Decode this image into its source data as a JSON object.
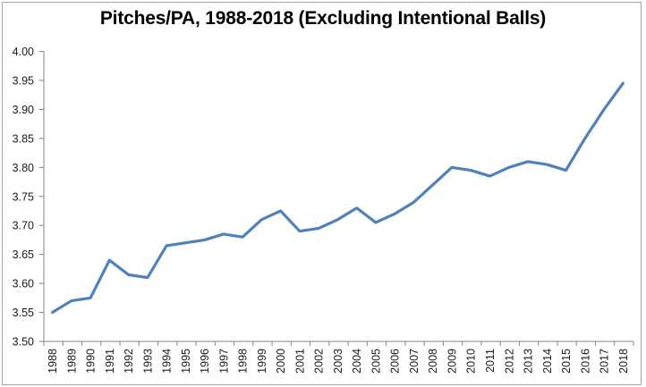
{
  "chart_data": {
    "type": "line",
    "title": "Pitches/PA, 1988-2018 (Excluding Intentional Balls)",
    "x": [
      "1988",
      "1989",
      "1990",
      "1991",
      "1992",
      "1993",
      "1994",
      "1995",
      "1996",
      "1997",
      "1998",
      "1999",
      "2000",
      "2001",
      "2002",
      "2003",
      "2004",
      "2005",
      "2006",
      "2007",
      "2008",
      "2009",
      "2010",
      "2011",
      "2012",
      "2013",
      "2014",
      "2015",
      "2016",
      "2017",
      "2018"
    ],
    "series": [
      {
        "name": "Pitches per PA",
        "values": [
          3.55,
          3.57,
          3.575,
          3.64,
          3.615,
          3.61,
          3.665,
          3.67,
          3.675,
          3.685,
          3.68,
          3.71,
          3.725,
          3.69,
          3.695,
          3.71,
          3.73,
          3.705,
          3.72,
          3.74,
          3.77,
          3.8,
          3.795,
          3.785,
          3.8,
          3.81,
          3.805,
          3.795,
          3.85,
          3.9,
          3.945
        ]
      }
    ],
    "xlabel": "",
    "ylabel": "",
    "ylim": [
      3.5,
      4.0
    ],
    "ytick_step": 0.05,
    "ytick_labels": [
      "3.50",
      "3.55",
      "3.60",
      "3.65",
      "3.70",
      "3.75",
      "3.80",
      "3.85",
      "3.90",
      "3.95",
      "4.00"
    ],
    "grid": false,
    "legend_position": "none",
    "colors": {
      "series_line": "#4f81bd",
      "axis_line": "#868686",
      "tick_label": "#1a1a1a",
      "title": "#000000",
      "frame_border": "#a6a6a6",
      "background": "#ffffff"
    }
  }
}
